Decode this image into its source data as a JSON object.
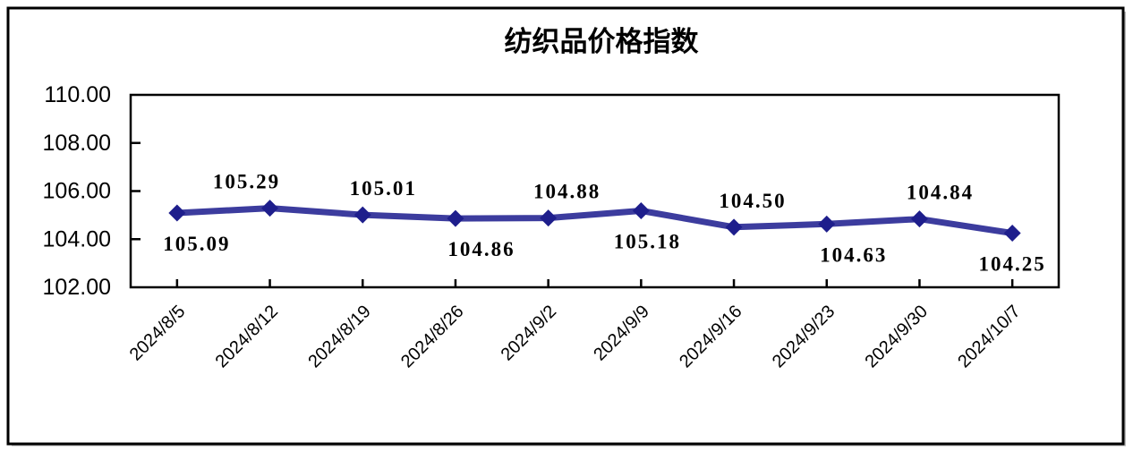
{
  "chart_data": {
    "type": "line",
    "title": "纺织品价格指数",
    "categories": [
      "2024/8/5",
      "2024/8/12",
      "2024/8/19",
      "2024/8/26",
      "2024/9/2",
      "2024/9/9",
      "2024/9/16",
      "2024/9/23",
      "2024/9/30",
      "2024/10/7"
    ],
    "series": [
      {
        "name": "纺织品价格指数",
        "values": [
          105.09,
          105.29,
          105.01,
          104.86,
          104.88,
          105.18,
          104.5,
          104.63,
          104.84,
          104.25
        ]
      }
    ],
    "point_labels": [
      "105.09",
      "105.29",
      "105.01",
      "104.86",
      "104.88",
      "105.18",
      "104.50",
      "104.63",
      "104.84",
      "104.25"
    ],
    "label_side": [
      "below",
      "above",
      "above",
      "below",
      "above",
      "below",
      "above",
      "below",
      "above",
      "below"
    ],
    "xlabel": "",
    "ylabel": "",
    "ylim": [
      102,
      110
    ],
    "ytick_step": 2,
    "ytick_labels": [
      "110.00",
      "108.00",
      "106.00",
      "104.00",
      "102.00"
    ],
    "x_tick_rotation_deg": 45,
    "grid": false,
    "legend_position": "none",
    "marker_shape": "diamond",
    "colors": {
      "line": "#3C3C9E",
      "marker": "#1E1E8C",
      "axis": "#000000",
      "text": "#000000",
      "frame_shadow": "#b9b9b9",
      "background": "#FFFFFF"
    }
  }
}
